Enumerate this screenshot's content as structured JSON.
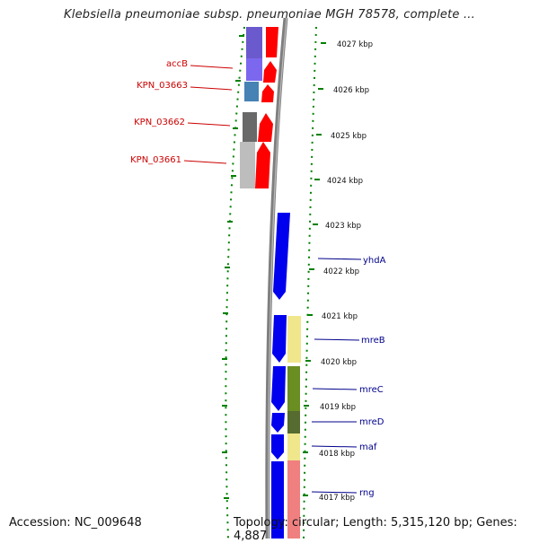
{
  "title": "Klebsiella pneumoniae subsp. pneumoniae MGH 78578, complete ...",
  "accession": "Accession: NC_009648",
  "topology": "Topology: circular; Length: 5,315,120 bp; Genes: 4,887",
  "colors": {
    "left_label": "#cc0000",
    "right_label": "#00008b",
    "reverse_cds": "#ff0000",
    "forward_cds": "#0000ee",
    "backbone": "#808080",
    "tick_marks": "#008000"
  },
  "kbp_labels": [
    "4027 kbp",
    "4026 kbp",
    "4025 kbp",
    "4024 kbp",
    "4023 kbp",
    "4022 kbp",
    "4021 kbp",
    "4020 kbp",
    "4019 kbp",
    "4018 kbp",
    "4017 kbp"
  ],
  "genes_left": [
    "accB",
    "KPN_03663",
    "KPN_03662",
    "KPN_03661"
  ],
  "genes_right": [
    "yhdA",
    "mreB",
    "mreC",
    "mreD",
    "maf",
    "rng"
  ]
}
